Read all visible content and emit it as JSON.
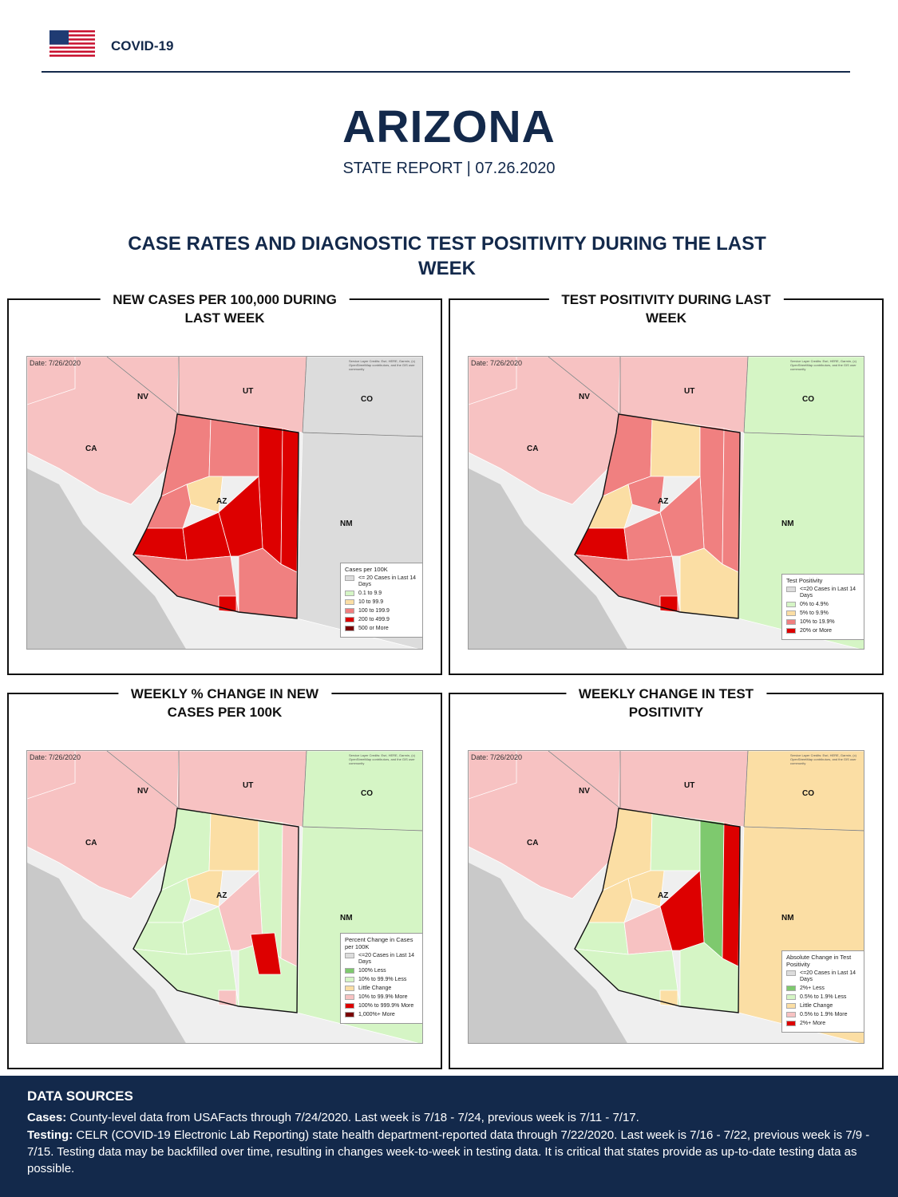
{
  "header": {
    "label": "COVID-19"
  },
  "report": {
    "state": "ARIZONA",
    "subtitle": "STATE REPORT | 07.26.2020"
  },
  "section_title": "CASE RATES AND DIAGNOSTIC TEST POSITIVITY DURING THE LAST WEEK",
  "map_common": {
    "date": "Date: 7/26/2020",
    "credit": "Service Layer Credits: Esri, HERE, Garmin, (c) OpenStreetMap contributors, and the GIS user community",
    "state_labels": [
      "NV",
      "UT",
      "CO",
      "CA",
      "AZ",
      "NM"
    ]
  },
  "colors": {
    "navy": "#13294b",
    "gray": "#dcdcdc",
    "light_red": "#f7c2c2",
    "salmon": "#f08080",
    "red": "#dd0000",
    "dark_red": "#7a0000",
    "light_green": "#d5f5c5",
    "green": "#7ec96e",
    "tan": "#fbdea4"
  },
  "panels": [
    {
      "title_line1": "NEW CASES PER 100,000 DURING",
      "title_line2": "LAST WEEK",
      "legend_title": "Cases per 100K",
      "legend": [
        {
          "label": "<= 20 Cases in Last 14 Days",
          "color": "#dcdcdc"
        },
        {
          "label": "0.1 to 9.9",
          "color": "#d5f5c5"
        },
        {
          "label": "10 to 99.9",
          "color": "#fbdea4"
        },
        {
          "label": "100 to 199.9",
          "color": "#f08080"
        },
        {
          "label": "200 to 499.9",
          "color": "#dd0000"
        },
        {
          "label": "500 or More",
          "color": "#7a0000"
        }
      ]
    },
    {
      "title_line1": "TEST POSITIVITY DURING LAST",
      "title_line2": "WEEK",
      "legend_title": "Test Positivity",
      "legend": [
        {
          "label": "<=20 Cases in Last 14 Days",
          "color": "#dcdcdc"
        },
        {
          "label": "0% to 4.9%",
          "color": "#d5f5c5"
        },
        {
          "label": "5% to 9.9%",
          "color": "#fbdea4"
        },
        {
          "label": "10% to 19.9%",
          "color": "#f08080"
        },
        {
          "label": "20% or More",
          "color": "#dd0000"
        }
      ]
    },
    {
      "title_line1": "WEEKLY % CHANGE IN NEW",
      "title_line2": "CASES PER 100K",
      "legend_title": "Percent Change in Cases per 100K",
      "legend": [
        {
          "label": "<=20 Cases in Last 14 Days",
          "color": "#dcdcdc"
        },
        {
          "label": "100% Less",
          "color": "#7ec96e"
        },
        {
          "label": "10% to 99.9% Less",
          "color": "#d5f5c5"
        },
        {
          "label": "Little Change",
          "color": "#fbdea4"
        },
        {
          "label": "10% to 99.9% More",
          "color": "#f7c2c2"
        },
        {
          "label": "100% to 999.9% More",
          "color": "#dd0000"
        },
        {
          "label": "1,000%+ More",
          "color": "#7a0000"
        }
      ]
    },
    {
      "title_line1": "WEEKLY CHANGE IN TEST",
      "title_line2": "POSITIVITY",
      "legend_title": "Absolute Change in Test Positivity",
      "legend": [
        {
          "label": "<=20 Cases in Last 14 Days",
          "color": "#dcdcdc"
        },
        {
          "label": "2%+ Less",
          "color": "#7ec96e"
        },
        {
          "label": "0.5% to 1.9% Less",
          "color": "#d5f5c5"
        },
        {
          "label": "Little Change",
          "color": "#fbdea4"
        },
        {
          "label": "0.5% to 1.9% More",
          "color": "#f7c2c2"
        },
        {
          "label": "2%+ More",
          "color": "#dd0000"
        }
      ]
    }
  ],
  "footer": {
    "heading": "DATA SOURCES",
    "cases_label": "Cases:",
    "cases_text": " County-level data from USAFacts through 7/24/2020. Last week is 7/18 - 7/24, previous week is 7/11 - 7/17.",
    "testing_label": "Testing:",
    "testing_text": " CELR (COVID-19 Electronic Lab Reporting) state health department-reported data through 7/22/2020. Last week is 7/16 - 7/22, previous week is 7/9 - 7/15. Testing data may be backfilled over time, resulting in changes week-to-week in testing data. It is critical that states provide as up-to-date testing data as possible."
  }
}
